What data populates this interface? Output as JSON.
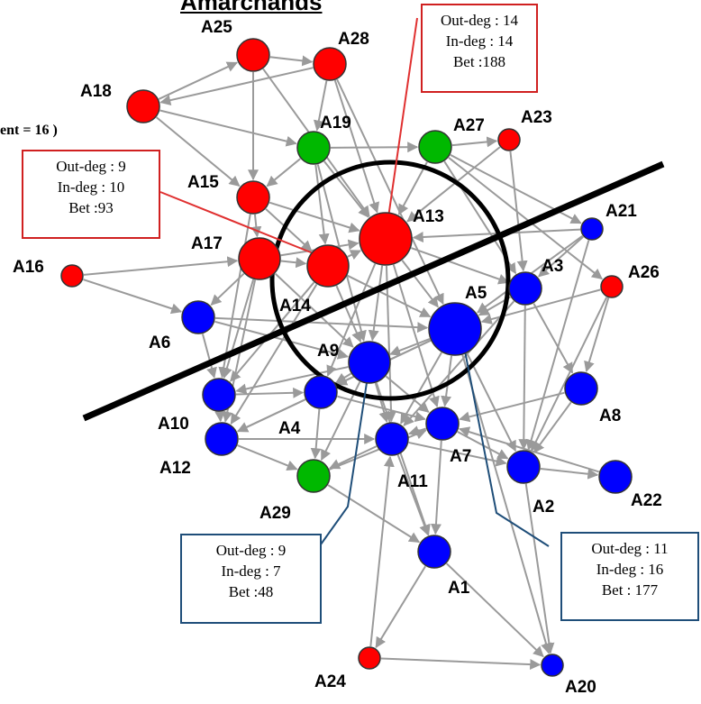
{
  "header": {
    "title_fragment": "Amarchands",
    "left_fragment": "ent = 16 )"
  },
  "colors": {
    "red": "#ff0000",
    "blue": "#0000ff",
    "green": "#00b800",
    "edge": "#9a9a9a",
    "red_box": "#d02020",
    "blue_box": "#1f4e79"
  },
  "nodes": [
    {
      "id": "A25",
      "label": "A25",
      "color": "red",
      "size": "m"
    },
    {
      "id": "A28",
      "label": "A28",
      "color": "red",
      "size": "m"
    },
    {
      "id": "A18",
      "label": "A18",
      "color": "red",
      "size": "m"
    },
    {
      "id": "A19",
      "label": "A19",
      "color": "green",
      "size": "m"
    },
    {
      "id": "A27",
      "label": "A27",
      "color": "green",
      "size": "m"
    },
    {
      "id": "A23",
      "label": "A23",
      "color": "red",
      "size": "s"
    },
    {
      "id": "A15",
      "label": "A15",
      "color": "red",
      "size": "m"
    },
    {
      "id": "A13",
      "label": "A13",
      "color": "red",
      "size": "xl"
    },
    {
      "id": "A21",
      "label": "A21",
      "color": "blue",
      "size": "s"
    },
    {
      "id": "A17",
      "label": "A17",
      "color": "red",
      "size": "l"
    },
    {
      "id": "A14",
      "label": "A14",
      "color": "red",
      "size": "l"
    },
    {
      "id": "A16",
      "label": "A16",
      "color": "red",
      "size": "s"
    },
    {
      "id": "A3",
      "label": "A3",
      "color": "blue",
      "size": "m"
    },
    {
      "id": "A26",
      "label": "A26",
      "color": "red",
      "size": "s"
    },
    {
      "id": "A5",
      "label": "A5",
      "color": "blue",
      "size": "xl"
    },
    {
      "id": "A6",
      "label": "A6",
      "color": "blue",
      "size": "m"
    },
    {
      "id": "A9",
      "label": "A9",
      "color": "blue",
      "size": "l"
    },
    {
      "id": "A8",
      "label": "A8",
      "color": "blue",
      "size": "m"
    },
    {
      "id": "A10",
      "label": "A10",
      "color": "blue",
      "size": "m"
    },
    {
      "id": "A4",
      "label": "A4",
      "color": "blue",
      "size": "m"
    },
    {
      "id": "A7",
      "label": "A7",
      "color": "blue",
      "size": "m"
    },
    {
      "id": "A12",
      "label": "A12",
      "color": "blue",
      "size": "m"
    },
    {
      "id": "A11",
      "label": "A11",
      "color": "blue",
      "size": "m"
    },
    {
      "id": "A2",
      "label": "A2",
      "color": "blue",
      "size": "m"
    },
    {
      "id": "A22",
      "label": "A22",
      "color": "blue",
      "size": "m"
    },
    {
      "id": "A29",
      "label": "A29",
      "color": "green",
      "size": "m"
    },
    {
      "id": "A1",
      "label": "A1",
      "color": "blue",
      "size": "m"
    },
    {
      "id": "A24",
      "label": "A24",
      "color": "red",
      "size": "s"
    },
    {
      "id": "A20",
      "label": "A20",
      "color": "blue",
      "size": "s"
    }
  ],
  "edges": [
    [
      "A18",
      "A25"
    ],
    [
      "A25",
      "A28"
    ],
    [
      "A28",
      "A18"
    ],
    [
      "A18",
      "A19"
    ],
    [
      "A18",
      "A15"
    ],
    [
      "A25",
      "A15"
    ],
    [
      "A28",
      "A13"
    ],
    [
      "A25",
      "A13"
    ],
    [
      "A28",
      "A19"
    ],
    [
      "A19",
      "A13"
    ],
    [
      "A19",
      "A14"
    ],
    [
      "A19",
      "A15"
    ],
    [
      "A27",
      "A13"
    ],
    [
      "A27",
      "A23"
    ],
    [
      "A27",
      "A26"
    ],
    [
      "A27",
      "A3"
    ],
    [
      "A23",
      "A13"
    ],
    [
      "A15",
      "A13"
    ],
    [
      "A15",
      "A14"
    ],
    [
      "A15",
      "A17"
    ],
    [
      "A17",
      "A13"
    ],
    [
      "A17",
      "A14"
    ],
    [
      "A17",
      "A6"
    ],
    [
      "A17",
      "A10"
    ],
    [
      "A17",
      "A12"
    ],
    [
      "A17",
      "A9"
    ],
    [
      "A14",
      "A13"
    ],
    [
      "A14",
      "A5"
    ],
    [
      "A14",
      "A10"
    ],
    [
      "A14",
      "A12"
    ],
    [
      "A14",
      "A9"
    ],
    [
      "A13",
      "A5"
    ],
    [
      "A13",
      "A9"
    ],
    [
      "A13",
      "A3"
    ],
    [
      "A13",
      "A7"
    ],
    [
      "A13",
      "A11"
    ],
    [
      "A21",
      "A5"
    ],
    [
      "A21",
      "A3"
    ],
    [
      "A21",
      "A13"
    ],
    [
      "A21",
      "A2"
    ],
    [
      "A16",
      "A17"
    ],
    [
      "A16",
      "A6"
    ],
    [
      "A3",
      "A5"
    ],
    [
      "A3",
      "A8"
    ],
    [
      "A3",
      "A2"
    ],
    [
      "A3",
      "A11"
    ],
    [
      "A26",
      "A8"
    ],
    [
      "A26",
      "A5"
    ],
    [
      "A26",
      "A2"
    ],
    [
      "A5",
      "A9"
    ],
    [
      "A5",
      "A2"
    ],
    [
      "A5",
      "A7"
    ],
    [
      "A5",
      "A4"
    ],
    [
      "A5",
      "A11"
    ],
    [
      "A5",
      "A12"
    ],
    [
      "A5",
      "A20"
    ],
    [
      "A6",
      "A5"
    ],
    [
      "A6",
      "A9"
    ],
    [
      "A9",
      "A11"
    ],
    [
      "A9",
      "A4"
    ],
    [
      "A9",
      "A29"
    ],
    [
      "A9",
      "A10"
    ],
    [
      "A9",
      "A7"
    ],
    [
      "A9",
      "A1"
    ],
    [
      "A8",
      "A2"
    ],
    [
      "A8",
      "A7"
    ],
    [
      "A10",
      "A4"
    ],
    [
      "A4",
      "A29"
    ],
    [
      "A4",
      "A7"
    ],
    [
      "A4",
      "A12"
    ],
    [
      "A7",
      "A2"
    ],
    [
      "A7",
      "A11"
    ],
    [
      "A7",
      "A1"
    ],
    [
      "A12",
      "A11"
    ],
    [
      "A12",
      "A29"
    ],
    [
      "A11",
      "A29"
    ],
    [
      "A11",
      "A1"
    ],
    [
      "A11",
      "A2"
    ],
    [
      "A2",
      "A22"
    ],
    [
      "A22",
      "A7"
    ],
    [
      "A2",
      "A20"
    ],
    [
      "A29",
      "A1"
    ],
    [
      "A1",
      "A24"
    ],
    [
      "A24",
      "A20"
    ],
    [
      "A24",
      "A11"
    ],
    [
      "A1",
      "A20"
    ],
    [
      "A10",
      "A12"
    ],
    [
      "A19",
      "A9"
    ],
    [
      "A28",
      "A5"
    ],
    [
      "A15",
      "A10"
    ],
    [
      "A6",
      "A10"
    ],
    [
      "A13",
      "A4"
    ],
    [
      "A23",
      "A3"
    ],
    [
      "A27",
      "A21"
    ],
    [
      "A29",
      "A7"
    ],
    [
      "A19",
      "A27"
    ]
  ],
  "stat_boxes": [
    {
      "id": "A13",
      "lines": [
        "Out-deg : 14",
        "In-deg : 14",
        "Bet :188"
      ],
      "color": "red_box"
    },
    {
      "id": "A14",
      "lines": [
        "Out-deg : 9",
        "In-deg : 10",
        "Bet :93"
      ],
      "color": "red_box"
    },
    {
      "id": "A9",
      "lines": [
        "Out-deg : 9",
        "In-deg : 7",
        "Bet :48"
      ],
      "color": "blue_box"
    },
    {
      "id": "A5",
      "lines": [
        "Out-deg : 11",
        "In-deg : 16",
        "Bet : 177"
      ],
      "color": "blue_box"
    }
  ]
}
